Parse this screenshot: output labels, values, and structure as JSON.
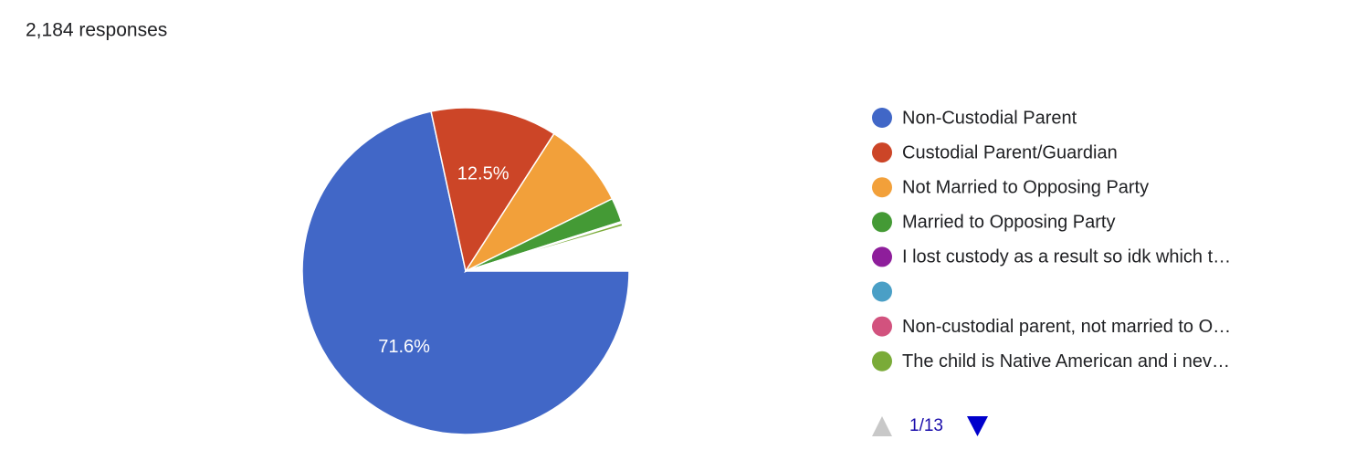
{
  "chart_data": {
    "type": "pie",
    "title": "2,184 responses",
    "categories": [
      "Non-Custodial Parent",
      "Custodial Parent/Guardian",
      "Not Married to Opposing Party",
      "Married to Opposing Party",
      "I lost custody as a result so idk which t…",
      null,
      "Non-custodial parent, not married to O…",
      "The child is Native American and i nev…"
    ],
    "values": [
      71.6,
      12.5,
      8.6,
      2.4,
      0.05,
      0.05,
      0.05,
      0.3
    ],
    "value_labels": [
      "71.6%",
      "12.5%",
      null,
      null,
      null,
      null,
      null,
      null
    ],
    "colors": [
      "#4167c7",
      "#cc4527",
      "#f2a03a",
      "#449a35",
      "#8e1e9b",
      "#4a9fc6",
      "#d2527e",
      "#7aab38"
    ],
    "legend": "right",
    "pager": "1/13"
  }
}
